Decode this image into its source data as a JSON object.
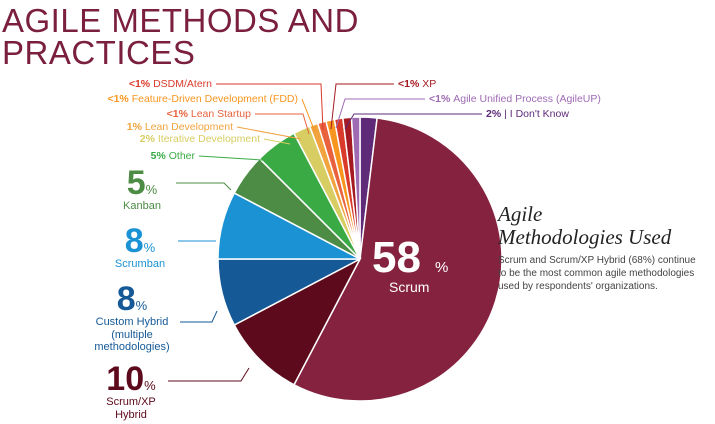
{
  "title_line1": "AGILE METHODS AND",
  "title_line2": "PRACTICES",
  "chart_data": {
    "type": "pie",
    "slices": [
      {
        "label": "I Don't Know",
        "pct": "2%",
        "value": 2,
        "color": "#5f2a78"
      },
      {
        "label": "Scrum",
        "pct": "58%",
        "value": 58,
        "color": "#852240"
      },
      {
        "label": "Scrum/XP Hybrid",
        "pct": "10%",
        "value": 10,
        "color": "#5c0a1c"
      },
      {
        "label": "Custom Hybrid (multiple methodologies)",
        "pct": "8%",
        "value": 8,
        "color": "#155a97"
      },
      {
        "label": "Scrumban",
        "pct": "8%",
        "value": 8,
        "color": "#1a92d4"
      },
      {
        "label": "Kanban",
        "pct": "5%",
        "value": 5,
        "color": "#4c8c44"
      },
      {
        "label": "Other",
        "pct": "5%",
        "value": 5,
        "color": "#3aaa45"
      },
      {
        "label": "Iterative Development",
        "pct": "2%",
        "value": 2,
        "color": "#d7cd62"
      },
      {
        "label": "Lean Development",
        "pct": "1%",
        "value": 1,
        "color": "#f1a33e"
      },
      {
        "label": "Lean Startup",
        "pct": "<1%",
        "value": 1,
        "color": "#e9623d"
      },
      {
        "label": "Feature-Driven Development (FDD)",
        "pct": "<1%",
        "value": 1,
        "color": "#f7951f"
      },
      {
        "label": "DSDM/Atern",
        "pct": "<1%",
        "value": 1,
        "color": "#d93a2a"
      },
      {
        "label": "XP",
        "pct": "<1%",
        "value": 1,
        "color": "#a51a22"
      },
      {
        "label": "Agile Unified Process (AgileUP)",
        "pct": "<1%",
        "value": 1,
        "color": "#9e6bb3"
      }
    ]
  },
  "callouts": {
    "scrum": {
      "num": "58",
      "pct": "%",
      "label": "Scrum"
    },
    "kanban": {
      "num": "5",
      "pct": "%",
      "label": "Kanban",
      "color": "#4c8c44"
    },
    "scrumban": {
      "num": "8",
      "pct": "%",
      "label": "Scrumban",
      "color": "#1a92d4"
    },
    "custom": {
      "num": "8",
      "pct": "%",
      "label_lines": [
        "Custom Hybrid",
        "(multiple",
        "methodologies)"
      ],
      "color": "#155a97"
    },
    "hybrid": {
      "num": "10",
      "pct": "%",
      "label_lines": [
        "Scrum/XP",
        "Hybrid"
      ],
      "color": "#5c0a1c"
    },
    "other": {
      "pct": "5%",
      "label": "Other",
      "color": "#3aaa45"
    },
    "iterative": {
      "pct": "2%",
      "label": "Iterative Development",
      "color": "#d7cd62"
    },
    "lean_dev": {
      "pct": "1%",
      "label": "Lean Development",
      "color": "#f1a33e"
    },
    "lean_startup": {
      "pct": "<1%",
      "label": "Lean Startup",
      "color": "#e9623d"
    },
    "fdd": {
      "pct": "<1%",
      "label": "Feature-Driven Development (FDD)",
      "color": "#f7951f"
    },
    "dsdm": {
      "pct": "<1%",
      "label": "DSDM/Atern",
      "color": "#d93a2a"
    },
    "xp": {
      "pct": "<1%",
      "label": "XP",
      "color": "#a51a22"
    },
    "agileup": {
      "pct": "<1%",
      "label": "Agile Unified Process (AgileUP)",
      "color": "#9e6bb3"
    },
    "dontknow": {
      "pct": "2%",
      "label": "I Don't Know",
      "color": "#5f2a78"
    }
  },
  "subtitle_line1": "Agile",
  "subtitle_line2": "Methodologies Used",
  "description": "Scrum and Scrum/XP Hybrid (68%) continue to be the most common agile methodologies used by respondents' organizations."
}
